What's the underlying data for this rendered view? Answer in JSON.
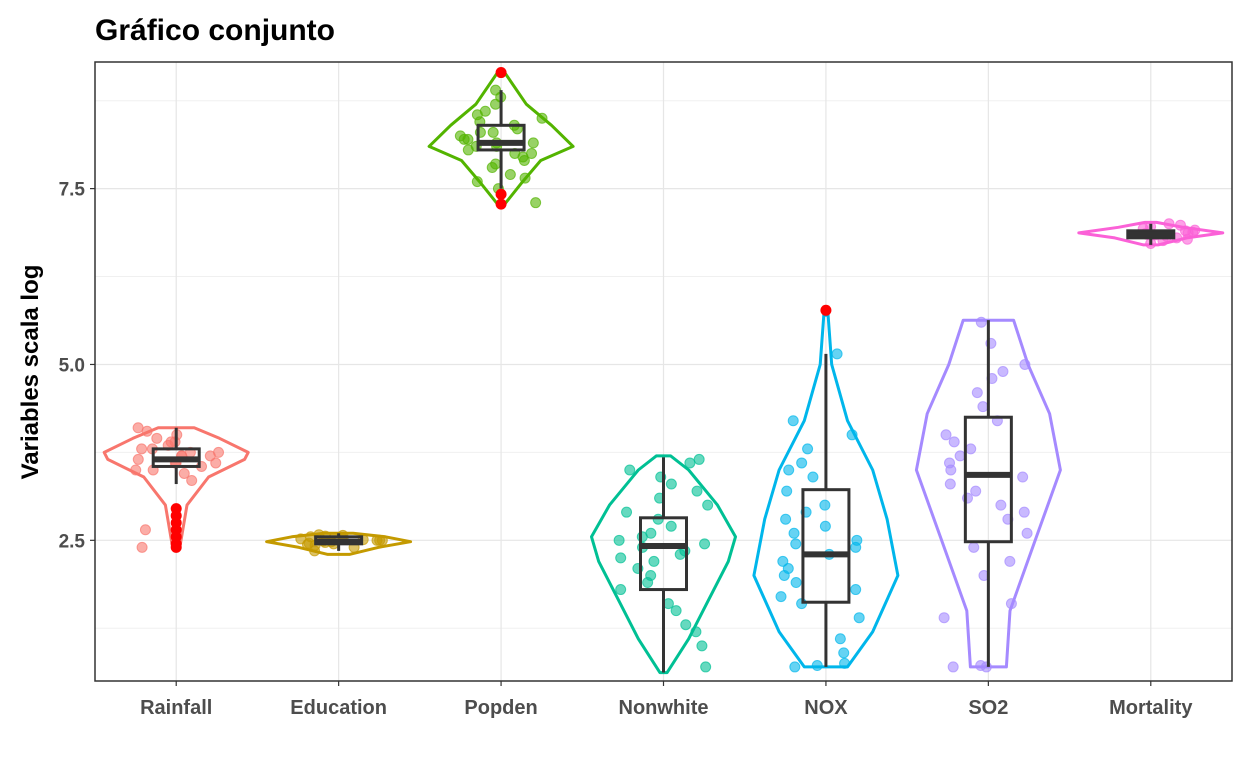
{
  "chart_data": {
    "type": "violin-box",
    "title": "Gráfico conjunto",
    "ylabel": "Variables scala log",
    "xlabel": "",
    "ylim": [
      0.5,
      9.3
    ],
    "yticks": [
      2.5,
      5.0,
      7.5
    ],
    "ytick_labels": [
      "2.5",
      "5.0",
      "7.5"
    ],
    "grid": true,
    "legend": "none",
    "outlier_color": "#ff0000",
    "categories": [
      "Rainfall",
      "Education",
      "Popden",
      "Nonwhite",
      "NOX",
      "SO2",
      "Mortality"
    ],
    "series": [
      {
        "color": "#f8766d",
        "box": {
          "min": 3.3,
          "q1": 3.55,
          "median": 3.65,
          "q3": 3.8,
          "max": 4.1
        },
        "outliers": [
          2.95,
          2.85,
          2.75,
          2.65,
          2.55,
          2.45,
          2.4
        ],
        "violin": [
          [
            2.4,
            0.05
          ],
          [
            3.0,
            0.15
          ],
          [
            3.4,
            0.45
          ],
          [
            3.65,
            0.95
          ],
          [
            3.75,
            1.0
          ],
          [
            3.95,
            0.6
          ],
          [
            4.1,
            0.25
          ]
        ],
        "points": [
          3.6,
          3.7,
          3.8,
          3.5,
          3.9,
          4.0,
          3.65,
          3.7,
          3.45,
          3.85,
          3.95,
          3.55,
          3.75,
          4.1,
          3.6,
          3.8,
          3.35,
          2.65,
          3.7,
          3.9,
          4.05,
          3.5,
          3.6,
          3.75,
          2.4
        ]
      },
      {
        "color": "#c49a00",
        "box": {
          "min": 2.35,
          "q1": 2.45,
          "median": 2.48,
          "q3": 2.55,
          "max": 2.6
        },
        "outliers": [],
        "violin": [
          [
            2.3,
            0.15
          ],
          [
            2.4,
            0.55
          ],
          [
            2.48,
            1.0
          ],
          [
            2.55,
            0.65
          ],
          [
            2.6,
            0.2
          ]
        ],
        "points": [
          2.45,
          2.5,
          2.55,
          2.48,
          2.52,
          2.4,
          2.58,
          2.46,
          2.5,
          2.53,
          2.35,
          2.57,
          2.49,
          2.44,
          2.51,
          2.56,
          2.47,
          2.52,
          2.5,
          2.43
        ]
      },
      {
        "color": "#53b400",
        "box": {
          "min": 7.5,
          "q1": 8.05,
          "median": 8.15,
          "q3": 8.4,
          "max": 8.9
        },
        "outliers": [
          9.15,
          7.42,
          7.28
        ],
        "violin": [
          [
            7.28,
            0.05
          ],
          [
            7.6,
            0.3
          ],
          [
            7.9,
            0.55
          ],
          [
            8.1,
            1.0
          ],
          [
            8.4,
            0.7
          ],
          [
            8.7,
            0.35
          ],
          [
            9.15,
            0.05
          ]
        ],
        "points": [
          7.3,
          7.5,
          7.6,
          7.7,
          7.8,
          7.9,
          8.0,
          8.05,
          8.1,
          8.15,
          8.2,
          8.25,
          8.3,
          8.35,
          8.4,
          8.5,
          8.6,
          8.7,
          8.8,
          8.9,
          8.0,
          8.1,
          7.85,
          8.45,
          8.55,
          7.95,
          8.2,
          8.3,
          7.65,
          8.15
        ]
      },
      {
        "color": "#00c094",
        "box": {
          "min": 0.62,
          "q1": 1.8,
          "median": 2.42,
          "q3": 2.82,
          "max": 3.68
        },
        "outliers": [],
        "violin": [
          [
            0.62,
            0.05
          ],
          [
            1.1,
            0.35
          ],
          [
            1.6,
            0.6
          ],
          [
            2.2,
            0.9
          ],
          [
            2.55,
            1.0
          ],
          [
            3.0,
            0.75
          ],
          [
            3.5,
            0.35
          ],
          [
            3.7,
            0.1
          ]
        ],
        "points": [
          0.7,
          1.0,
          1.2,
          1.3,
          1.5,
          1.6,
          1.8,
          1.9,
          2.0,
          2.1,
          2.2,
          2.3,
          2.35,
          2.4,
          2.45,
          2.5,
          2.6,
          2.7,
          2.8,
          2.9,
          3.0,
          3.1,
          3.2,
          3.3,
          3.4,
          3.5,
          3.6,
          3.65,
          2.55,
          2.25
        ]
      },
      {
        "color": "#00b6eb",
        "box": {
          "min": 0.7,
          "q1": 1.62,
          "median": 2.3,
          "q3": 3.22,
          "max": 5.15
        },
        "outliers": [
          5.77
        ],
        "violin": [
          [
            0.7,
            0.3
          ],
          [
            1.2,
            0.65
          ],
          [
            2.0,
            1.0
          ],
          [
            2.8,
            0.85
          ],
          [
            3.5,
            0.65
          ],
          [
            4.2,
            0.3
          ],
          [
            5.0,
            0.08
          ],
          [
            5.7,
            0.03
          ]
        ],
        "points": [
          0.7,
          0.75,
          0.9,
          1.1,
          1.4,
          1.6,
          1.8,
          1.9,
          2.0,
          2.1,
          2.2,
          2.3,
          2.4,
          2.5,
          2.6,
          2.7,
          2.8,
          2.9,
          3.0,
          3.2,
          3.4,
          3.6,
          3.8,
          4.0,
          4.2,
          2.45,
          1.7,
          5.15,
          3.5,
          0.72
        ]
      },
      {
        "color": "#a58aff",
        "box": {
          "min": 0.7,
          "q1": 2.48,
          "median": 3.43,
          "q3": 4.25,
          "max": 5.63
        },
        "outliers": [],
        "violin": [
          [
            0.7,
            0.25
          ],
          [
            1.5,
            0.3
          ],
          [
            2.5,
            0.65
          ],
          [
            3.5,
            1.0
          ],
          [
            4.3,
            0.85
          ],
          [
            5.0,
            0.55
          ],
          [
            5.63,
            0.35
          ]
        ],
        "points": [
          0.7,
          0.7,
          0.72,
          1.4,
          1.6,
          2.0,
          2.2,
          2.4,
          2.6,
          2.8,
          3.0,
          3.1,
          3.2,
          3.3,
          3.4,
          3.5,
          3.6,
          3.7,
          3.8,
          4.0,
          4.2,
          4.4,
          4.6,
          4.8,
          5.0,
          5.3,
          5.6,
          3.9,
          2.9,
          4.9
        ]
      },
      {
        "color": "#fb61d7",
        "box": {
          "min": 6.7,
          "q1": 6.8,
          "median": 6.85,
          "q3": 6.9,
          "max": 7.0
        },
        "outliers": [],
        "violin": [
          [
            6.7,
            0.1
          ],
          [
            6.8,
            0.5
          ],
          [
            6.87,
            1.0
          ],
          [
            6.95,
            0.45
          ],
          [
            7.02,
            0.08
          ]
        ],
        "points": [
          6.72,
          6.78,
          6.82,
          6.85,
          6.88,
          6.9,
          6.93,
          6.96,
          7.0,
          6.8,
          6.87,
          6.84,
          6.91,
          6.76,
          6.98,
          6.86
        ]
      }
    ]
  }
}
